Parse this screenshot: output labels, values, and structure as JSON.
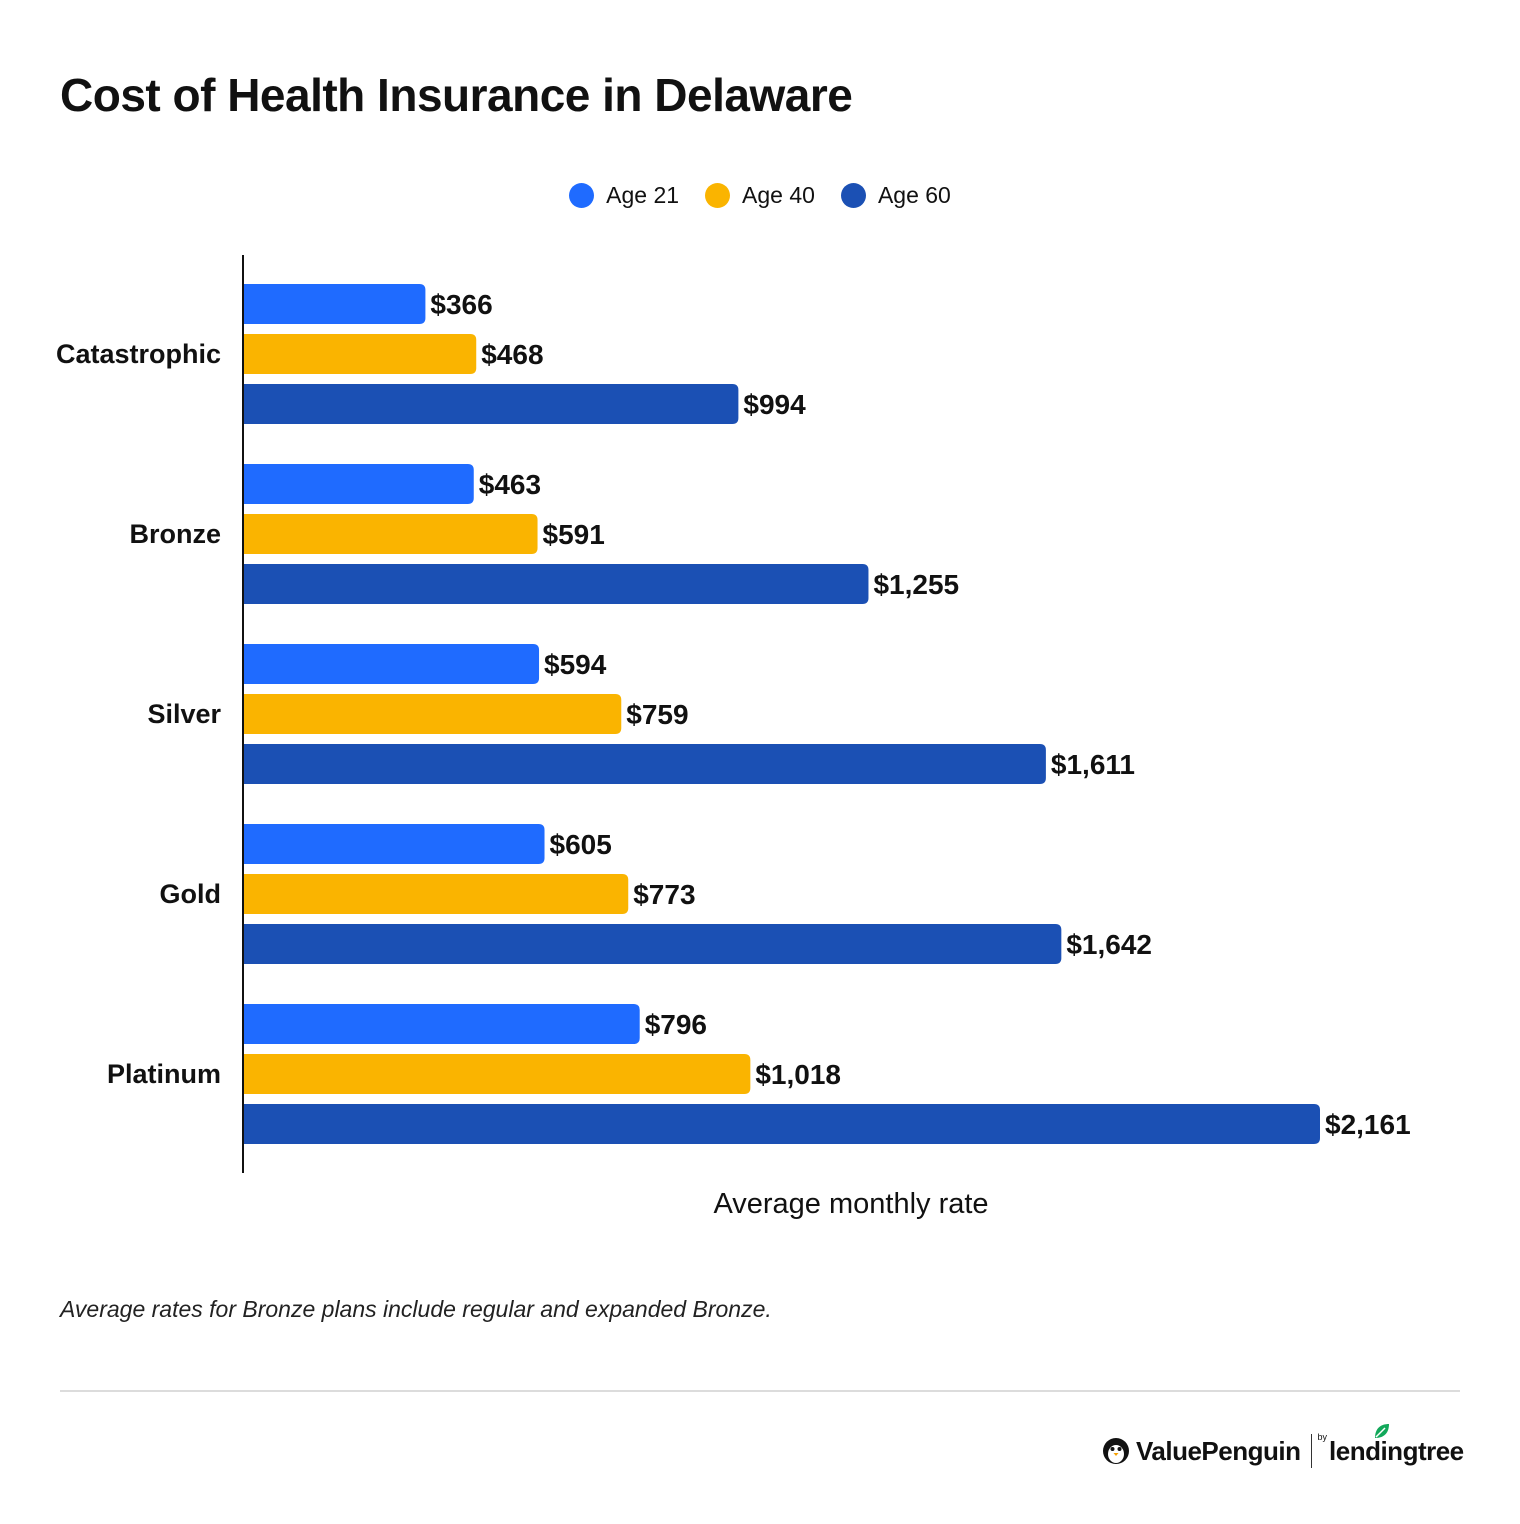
{
  "title": "Cost of Health Insurance in Delaware",
  "footnote": "Average rates for Bronze plans include regular and expanded Bronze.",
  "brand": {
    "name": "ValuePenguin",
    "by": "by",
    "partner": "lendingtree"
  },
  "chart_data": {
    "type": "bar",
    "orientation": "horizontal",
    "title": "Cost of Health Insurance in Delaware",
    "xlabel": "Average monthly rate",
    "ylabel": "",
    "categories": [
      "Catastrophic",
      "Bronze",
      "Silver",
      "Gold",
      "Platinum"
    ],
    "series": [
      {
        "name": "Age 21",
        "color": "#1f6bff",
        "values": [
          366,
          463,
          594,
          605,
          796
        ],
        "labels": [
          "$366",
          "$463",
          "$594",
          "$605",
          "$796"
        ]
      },
      {
        "name": "Age 40",
        "color": "#fab400",
        "values": [
          468,
          591,
          759,
          773,
          1018
        ],
        "labels": [
          "$468",
          "$591",
          "$759",
          "$773",
          "$1,018"
        ]
      },
      {
        "name": "Age 60",
        "color": "#1b50b4",
        "values": [
          994,
          1255,
          1611,
          1642,
          2161
        ],
        "labels": [
          "$994",
          "$1,255",
          "$1,611",
          "$1,642",
          "$2,161"
        ]
      }
    ],
    "xlim": [
      0,
      2161
    ],
    "grid": false,
    "legend": "top-center"
  }
}
